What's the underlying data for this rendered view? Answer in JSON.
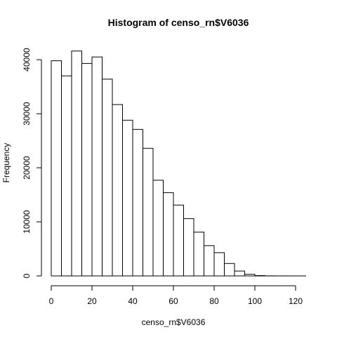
{
  "chart_data": {
    "type": "bar",
    "title": "Histogram of censo_rn$V6036",
    "xlabel": "censo_rn$V6036",
    "ylabel": "Frequency",
    "bins": [
      {
        "x0": 0,
        "x1": 5,
        "value": 39800
      },
      {
        "x0": 5,
        "x1": 10,
        "value": 37000
      },
      {
        "x0": 10,
        "x1": 15,
        "value": 41600
      },
      {
        "x0": 15,
        "x1": 20,
        "value": 39300
      },
      {
        "x0": 20,
        "x1": 25,
        "value": 40500
      },
      {
        "x0": 25,
        "x1": 30,
        "value": 36400
      },
      {
        "x0": 30,
        "x1": 35,
        "value": 31700
      },
      {
        "x0": 35,
        "x1": 40,
        "value": 28800
      },
      {
        "x0": 40,
        "x1": 45,
        "value": 27100
      },
      {
        "x0": 45,
        "x1": 50,
        "value": 23600
      },
      {
        "x0": 50,
        "x1": 55,
        "value": 17700
      },
      {
        "x0": 55,
        "x1": 60,
        "value": 15400
      },
      {
        "x0": 60,
        "x1": 65,
        "value": 13100
      },
      {
        "x0": 65,
        "x1": 70,
        "value": 10600
      },
      {
        "x0": 70,
        "x1": 75,
        "value": 8100
      },
      {
        "x0": 75,
        "x1": 80,
        "value": 5600
      },
      {
        "x0": 80,
        "x1": 85,
        "value": 4300
      },
      {
        "x0": 85,
        "x1": 90,
        "value": 2300
      },
      {
        "x0": 90,
        "x1": 95,
        "value": 900
      },
      {
        "x0": 95,
        "x1": 100,
        "value": 300
      },
      {
        "x0": 100,
        "x1": 105,
        "value": 60
      },
      {
        "x0": 105,
        "x1": 110,
        "value": 15
      },
      {
        "x0": 110,
        "x1": 115,
        "value": 5
      },
      {
        "x0": 115,
        "x1": 120,
        "value": 2
      },
      {
        "x0": 120,
        "x1": 125,
        "value": 1
      }
    ],
    "xticks": [
      0,
      20,
      40,
      60,
      80,
      100,
      120
    ],
    "xtick_labels": [
      "0",
      "20",
      "40",
      "60",
      "80",
      "100",
      "120"
    ],
    "yticks": [
      0,
      10000,
      20000,
      30000,
      40000
    ],
    "ytick_labels": [
      "0",
      "10000",
      "20000",
      "30000",
      "40000"
    ],
    "xlim": [
      0,
      125
    ],
    "ylim": [
      0,
      41600
    ],
    "grid": false,
    "legend": "none"
  }
}
